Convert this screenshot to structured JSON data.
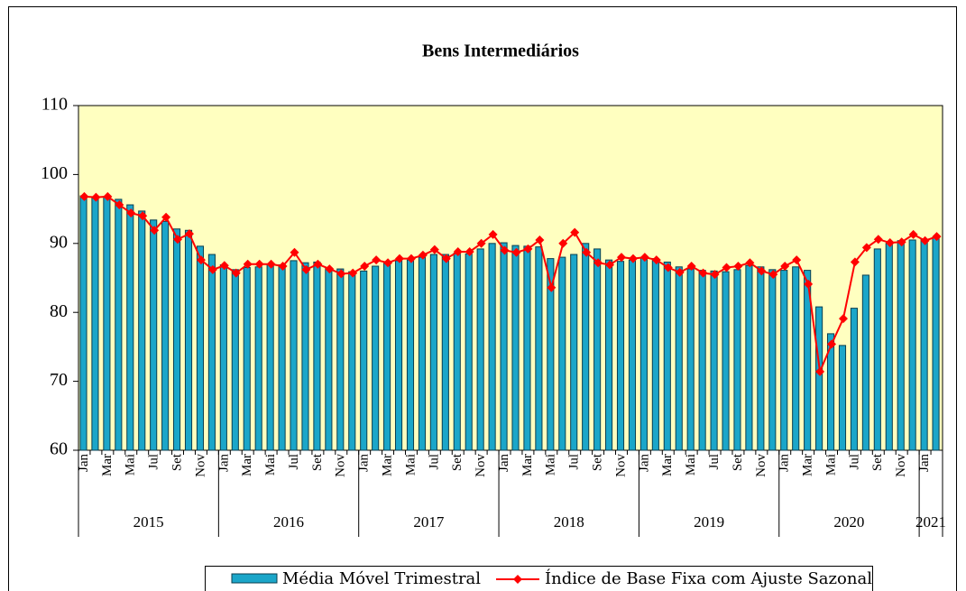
{
  "chart_data": {
    "type": "bar-line",
    "title": "Bens Intermediários",
    "categories": [
      "Jan",
      null,
      "Mar",
      null,
      "Mai",
      null,
      "Jul",
      null,
      "Set",
      null,
      "Nov",
      null,
      "Jan",
      null,
      "Mar",
      null,
      "Mai",
      null,
      "Jul",
      null,
      "Set",
      null,
      "Nov",
      null,
      "Jan",
      null,
      "Mar",
      null,
      "Mai",
      null,
      "Jul",
      null,
      "Set",
      null,
      "Nov",
      null,
      "Jan",
      null,
      "Mar",
      null,
      "Mai",
      null,
      "Jul",
      null,
      "Set",
      null,
      "Nov",
      null,
      "Jan",
      null,
      "Mar",
      null,
      "Mai",
      null,
      "Jul",
      null,
      "Set",
      null,
      "Nov",
      null,
      "Jan",
      null,
      "Mar",
      null,
      "Mai",
      null,
      "Jul",
      null,
      "Set",
      null,
      "Nov",
      null,
      "Jan",
      null
    ],
    "years": [
      "2015",
      "2016",
      "2017",
      "2018",
      "2019",
      "2020",
      "2021"
    ],
    "series": [
      {
        "name": "Média Móvel Trimestral",
        "kind": "bar",
        "color": "#1ba6c9",
        "values": [
          96.9,
          96.7,
          96.8,
          96.4,
          95.6,
          94.7,
          93.4,
          93.2,
          92.1,
          91.9,
          89.6,
          88.4,
          86.9,
          86.2,
          86.5,
          86.6,
          87.0,
          86.9,
          87.5,
          87.2,
          87.3,
          86.5,
          86.3,
          85.9,
          86.0,
          86.7,
          87.2,
          87.5,
          87.6,
          88.0,
          88.4,
          88.4,
          88.6,
          88.5,
          89.2,
          90.0,
          90.1,
          89.7,
          89.6,
          89.5,
          87.8,
          88.0,
          88.4,
          90.0,
          89.2,
          87.6,
          87.4,
          87.6,
          87.9,
          87.8,
          87.3,
          86.6,
          86.3,
          86.1,
          86.0,
          85.9,
          86.2,
          86.8,
          86.6,
          86.2,
          86.1,
          86.6,
          86.1,
          80.8,
          76.9,
          75.2,
          80.6,
          85.4,
          89.2,
          90.0,
          90.4,
          90.5,
          90.6,
          90.9
        ]
      },
      {
        "name": "Índice de Base Fixa com Ajuste Sazonal",
        "kind": "line",
        "color": "#ff0000",
        "values": [
          96.8,
          96.7,
          96.8,
          95.6,
          94.4,
          94.0,
          91.9,
          93.8,
          90.6,
          91.4,
          87.6,
          86.2,
          86.8,
          85.7,
          87.0,
          87.0,
          87.0,
          86.7,
          88.7,
          86.2,
          87.0,
          86.3,
          85.6,
          85.7,
          86.7,
          87.6,
          87.2,
          87.8,
          87.8,
          88.3,
          89.1,
          87.8,
          88.8,
          88.8,
          90.0,
          91.3,
          89.0,
          88.7,
          89.2,
          90.5,
          83.6,
          90.0,
          91.6,
          88.7,
          87.2,
          86.9,
          88.0,
          87.8,
          88.0,
          87.6,
          86.5,
          85.8,
          86.7,
          85.7,
          85.5,
          86.5,
          86.7,
          87.2,
          86.0,
          85.5,
          86.7,
          87.6,
          84.1,
          71.4,
          75.4,
          79.1,
          87.3,
          89.4,
          90.6,
          90.1,
          90.2,
          91.3,
          90.4,
          91.0
        ]
      }
    ],
    "ylim": [
      60,
      110
    ],
    "yticks": [
      60,
      70,
      80,
      90,
      100,
      110
    ],
    "plot_background": "#ffffc0"
  }
}
